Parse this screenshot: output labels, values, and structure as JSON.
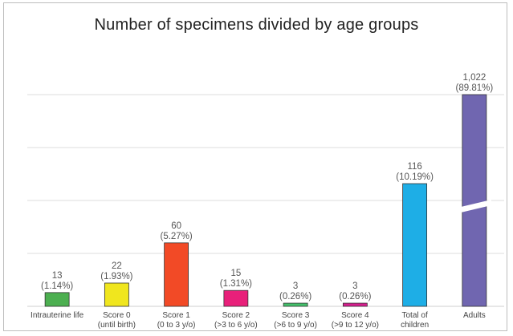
{
  "chart_data": {
    "type": "bar",
    "title": "Number of specimens divided by age groups",
    "xlabel": "",
    "ylabel": "",
    "grid": true,
    "y_axis_break": "Adults",
    "categories": [
      [
        "Intrauterine life"
      ],
      [
        "Score 0",
        "(until birth)"
      ],
      [
        "Score 1",
        "(0 to 3 y/o)"
      ],
      [
        "Score 2",
        "(>3 to 6 y/o)"
      ],
      [
        "Score 3",
        "(>6 to 9 y/o)"
      ],
      [
        "Score 4",
        "(>9 to 12 y/o)"
      ],
      [
        "Total of",
        "children"
      ],
      [
        "Adults"
      ]
    ],
    "values": [
      13,
      22,
      60,
      15,
      3,
      3,
      116,
      1022
    ],
    "value_labels": [
      "13",
      "22",
      "60",
      "15",
      "3",
      "3",
      "116",
      "1,022"
    ],
    "percent_labels": [
      "(1.14%)",
      "(1.93%)",
      "(5.27%)",
      "(1.31%)",
      "(0.26%)",
      "(0.26%)",
      "(10.19%)",
      "(89.81%)"
    ],
    "colors": [
      "#4caf50",
      "#f0e61e",
      "#f24a26",
      "#e8207a",
      "#43c06a",
      "#d61e8e",
      "#1eaee6",
      "#7066b0"
    ]
  }
}
